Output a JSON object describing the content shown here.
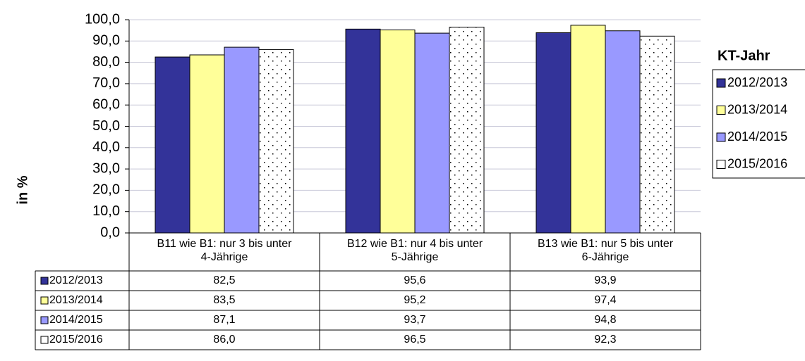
{
  "chart_data": {
    "type": "bar",
    "y_axis_label": "in %",
    "legend_title": "KT-Jahr",
    "legend_position": "right",
    "grid": true,
    "data_table": true,
    "categories": [
      "B11 wie B1: nur 3 bis unter 4-Jährige",
      "B12 wie B1: nur 4 bis unter 5-Jährige",
      "B13 wie B1: nur 5 bis unter 6-Jährige"
    ],
    "series": [
      {
        "name": "2012/2013",
        "color": "#333399",
        "values": [
          82.5,
          95.6,
          93.9
        ],
        "value_labels": [
          "82,5",
          "95,6",
          "93,9"
        ]
      },
      {
        "name": "2013/2014",
        "color": "#ffff99",
        "values": [
          83.5,
          95.2,
          97.4
        ],
        "value_labels": [
          "83,5",
          "95,2",
          "97,4"
        ]
      },
      {
        "name": "2014/2015",
        "color": "#9999ff",
        "values": [
          87.1,
          93.7,
          94.8
        ],
        "value_labels": [
          "87,1",
          "93,7",
          "94,8"
        ]
      },
      {
        "name": "2015/2016",
        "color": "#ffffff",
        "pattern": "dots",
        "values": [
          86.0,
          96.5,
          92.3
        ],
        "value_labels": [
          "86,0",
          "96,5",
          "92,3"
        ]
      }
    ],
    "ylim": [
      0,
      100
    ],
    "yticks": [
      {
        "value": 0,
        "label": "0,0"
      },
      {
        "value": 10,
        "label": "10,0"
      },
      {
        "value": 20,
        "label": "20,0"
      },
      {
        "value": 30,
        "label": "30,0"
      },
      {
        "value": 40,
        "label": "40,0"
      },
      {
        "value": 50,
        "label": "50,0"
      },
      {
        "value": 60,
        "label": "60,0"
      },
      {
        "value": 70,
        "label": "70,0"
      },
      {
        "value": 80,
        "label": "80,0"
      },
      {
        "value": 90,
        "label": "90,0"
      },
      {
        "value": 100,
        "label": "100,0"
      }
    ]
  }
}
